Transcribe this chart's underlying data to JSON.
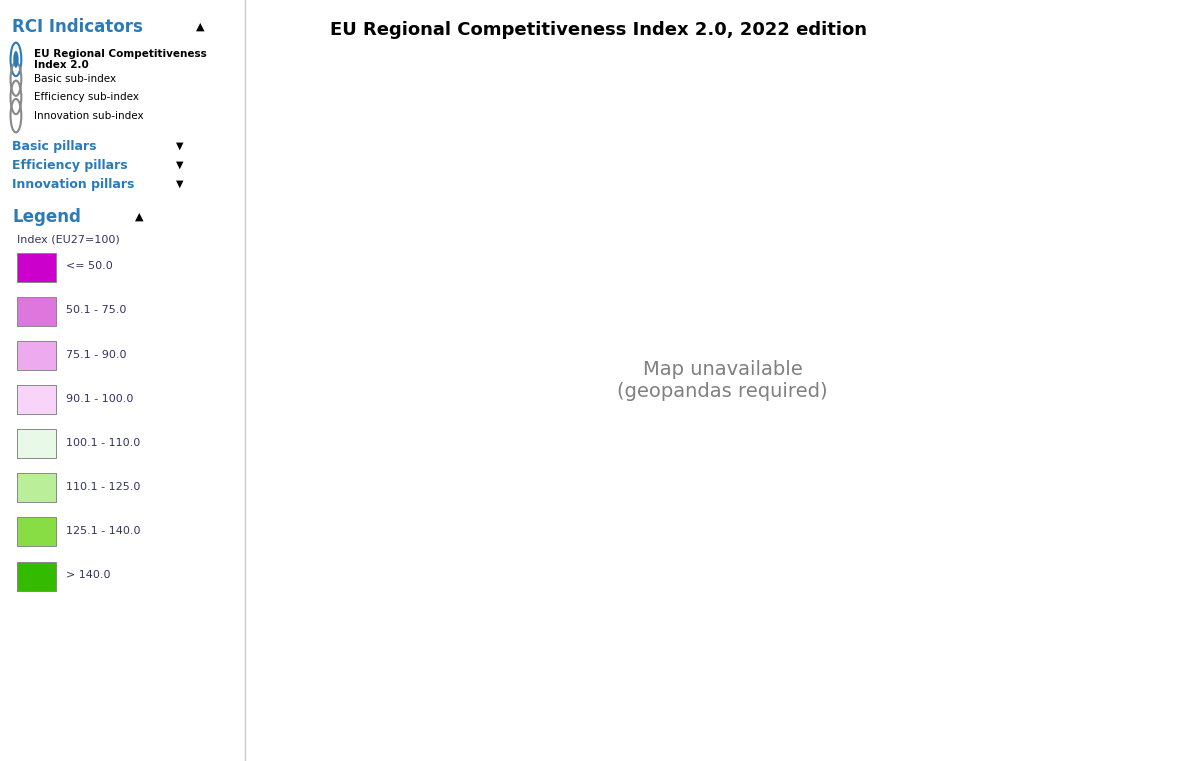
{
  "title": "EU Regional Competitiveness Index 2.0, 2022 edition",
  "title_bg": "#7ec8e3",
  "title_fontsize": 13,
  "sidebar_bg": "#ffffff",
  "ocean_color": "#ffffff",
  "non_eu_color": "#aaaaaa",
  "border_color": "#444444",
  "rci_indicators_color": "#2b7bb9",
  "sidebar_items": [
    "EU Regional Competitiveness\nIndex 2.0",
    "Basic sub-index",
    "Efficiency sub-index",
    "Innovation sub-index"
  ],
  "pillar_items": [
    "Basic pillars",
    "Efficiency pillars",
    "Innovation pillars"
  ],
  "legend_categories": [
    {
      "label": "<= 50.0",
      "color": "#cc00cc"
    },
    {
      "label": "50.1 - 75.0",
      "color": "#dd77dd"
    },
    {
      "label": "75.1 - 90.0",
      "color": "#eeaaee"
    },
    {
      "label": "90.1 - 100.0",
      "color": "#f9d4f9"
    },
    {
      "label": "100.1 - 110.0",
      "color": "#e8f9e8"
    },
    {
      "label": "110.1 - 125.0",
      "color": "#bbee99"
    },
    {
      "label": "125.1 - 140.0",
      "color": "#88dd44"
    },
    {
      "label": "> 140.0",
      "color": "#33bb00"
    }
  ],
  "country_colors": {
    "Sweden": "#bbee99",
    "Finland": "#bbee99",
    "Denmark": "#88dd44",
    "Norway": "#aaaaaa",
    "Iceland": "#aaaaaa",
    "United Kingdom": "#aaaaaa",
    "Ireland": "#bbee99",
    "France": "#e8f9e8",
    "Germany": "#bbee99",
    "Netherlands": "#33bb00",
    "Belgium": "#88dd44",
    "Luxembourg": "#33bb00",
    "Austria": "#bbee99",
    "Switzerland": "#aaaaaa",
    "Italy": "#eeaaee",
    "Spain": "#eeaaee",
    "Portugal": "#dd77dd",
    "Greece": "#dd77dd",
    "Poland": "#eeaaee",
    "Czechia": "#e8f9e8",
    "Czech Rep.": "#e8f9e8",
    "Slovakia": "#eeaaee",
    "Hungary": "#dd77dd",
    "Romania": "#dd77dd",
    "Bulgaria": "#cc00cc",
    "Croatia": "#eeaaee",
    "Slovenia": "#e8f9e8",
    "Estonia": "#e8f9e8",
    "Latvia": "#eeaaee",
    "Lithuania": "#eeaaee",
    "Cyprus": "#dd77dd",
    "Malta": "#dd77dd",
    "Serbia": "#aaaaaa",
    "Bosnia and Herz.": "#aaaaaa",
    "Kosovo": "#aaaaaa",
    "Albania": "#aaaaaa",
    "North Macedonia": "#aaaaaa",
    "Montenegro": "#aaaaaa",
    "Belarus": "#aaaaaa",
    "Ukraine": "#aaaaaa",
    "Moldova": "#aaaaaa",
    "Russia": "#aaaaaa",
    "Turkey": "#aaaaaa",
    "Morocco": "#aaaaaa",
    "Algeria": "#aaaaaa",
    "Tunisia": "#aaaaaa",
    "Libya": "#aaaaaa",
    "Egypt": "#aaaaaa",
    "Syria": "#aaaaaa",
    "Lebanon": "#aaaaaa",
    "Israel": "#aaaaaa",
    "Jordan": "#aaaaaa",
    "Kazakhstan": "#aaaaaa",
    "Georgia": "#aaaaaa",
    "Armenia": "#aaaaaa",
    "Azerbaijan": "#aaaaaa"
  },
  "map_xlim": [
    -25,
    45
  ],
  "map_ylim": [
    34,
    72
  ],
  "figsize": [
    12.0,
    7.61
  ],
  "dpi": 100
}
